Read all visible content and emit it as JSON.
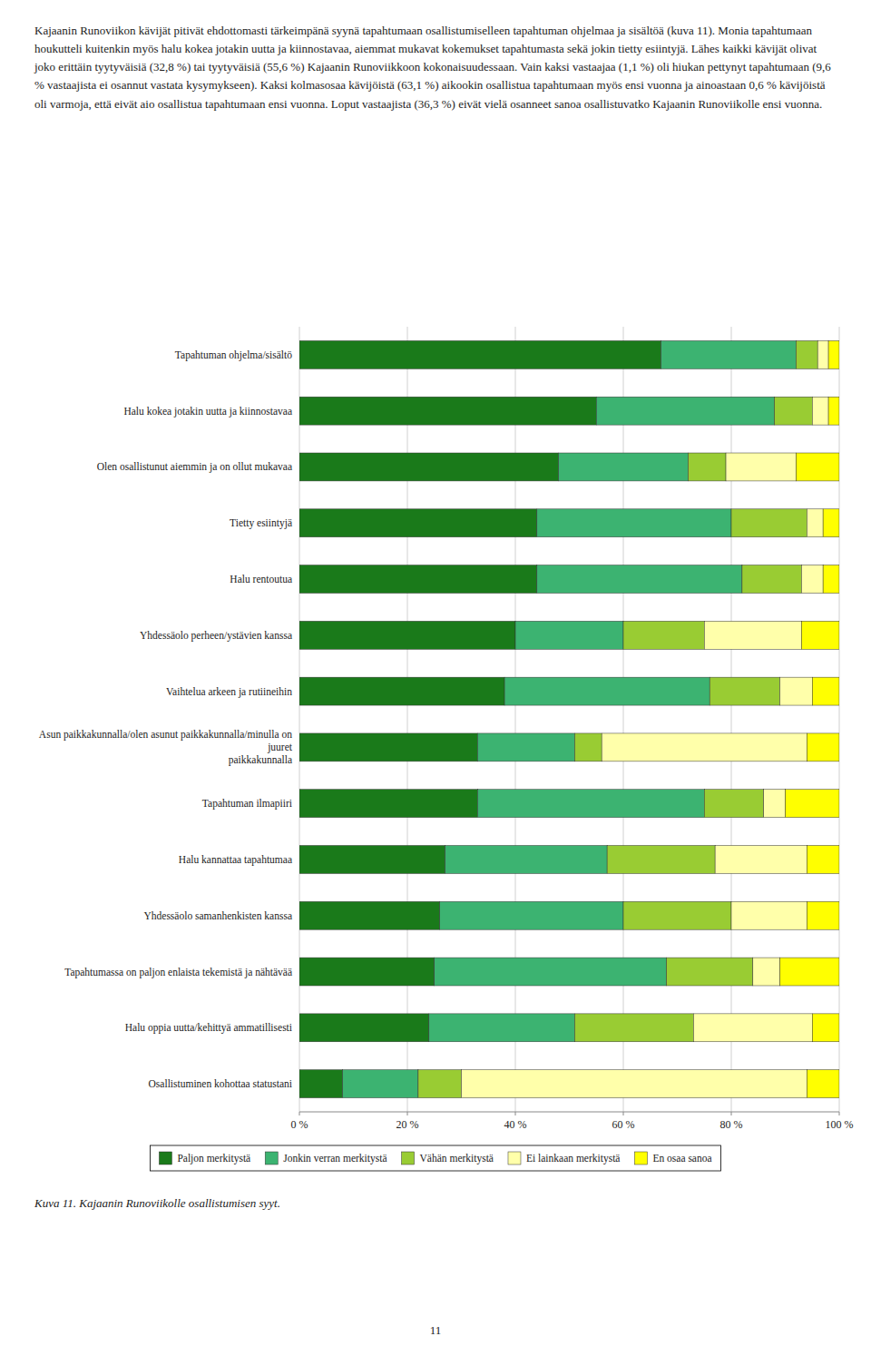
{
  "chart_data": {
    "type": "bar",
    "orientation": "horizontal",
    "stacked": true,
    "title": "Kuva 11. Kajaanin Runoviikolle osallistumisen syyt.",
    "annotations": [
      "Kajaanin Runoviikon kävijät pitivät ehdottomasti tärkeimpänä syynä tapahtumaan osallistumiselleen tapahtuman ohjelmaa ja sisältöä (kuva 11). Monia tapahtumaan houkutteli kuitenkin myös halu kokea jotakin uutta ja kiinnostavaa, aiemmat mukavat kokemukset tapahtumasta sekä jokin tietty esiintyjä. Lähes kaikki kävijät olivat joko erittäin tyytyväisiä (32,8 %) tai tyytyväisiä (55,6 %) Kajaanin Runoviikkoon kokonaisuudessaan. Vain kaksi vastaajaa (1,1 %) oli hiukan pettynyt tapahtumaan (9,6 % vastaajista ei osannut vastata kysymykseen). Kaksi kolmasosaa kävijöistä (63,1 %) aikookin osallistua tapahtumaan myös ensi vuonna ja ainoastaan 0,6 % kävijöistä oli varmoja, että eivät aio osallistua tapahtumaan ensi vuonna. Loput vastaajista (36,3 %) eivät vielä osanneet sanoa osallistuvatko Kajaanin Runoviikolle ensi vuonna.",
      "11"
    ],
    "categories": [
      "Tapahtuman ohjelma/sisältö",
      "Halu kokea jotakin uutta ja kiinnostavaa",
      "Olen osallistunut aiemmin ja on ollut mukavaa",
      "Tietty esiintyjä",
      "Halu rentoutua",
      "Yhdessäolo perheen/ystävien kanssa",
      "Vaihtelua arkeen ja rutiineihin",
      "Asun paikkakunnalla/olen asunut paikkakunnalla/minulla on juuret\npaikkakunnalla",
      "Tapahtuman ilmapiiri",
      "Halu kannattaa tapahtumaa",
      "Yhdessäolo samanhenkisten kanssa",
      "Tapahtumassa on paljon enlaista tekemistä ja nähtävää",
      "Halu oppia uutta/kehittyä ammatillisesti",
      "Osallistuminen kohottaa statustani"
    ],
    "series": [
      {
        "name": "Paljon merkitystä",
        "color": "#1a7a1a",
        "values": [
          67,
          55,
          48,
          44,
          44,
          40,
          38,
          33,
          33,
          27,
          26,
          25,
          24,
          8
        ]
      },
      {
        "name": "Jonkin verran merkitystä",
        "color": "#3cb371",
        "values": [
          25,
          33,
          24,
          36,
          38,
          20,
          38,
          18,
          42,
          30,
          34,
          43,
          27,
          14
        ]
      },
      {
        "name": "Vähän merkitystä",
        "color": "#99cc33",
        "values": [
          4,
          7,
          7,
          14,
          11,
          15,
          13,
          5,
          11,
          20,
          20,
          16,
          22,
          8
        ]
      },
      {
        "name": "Ei lainkaan merkitystä",
        "color": "#ffffaa",
        "values": [
          2,
          3,
          13,
          3,
          4,
          18,
          6,
          38,
          4,
          17,
          14,
          5,
          22,
          64
        ]
      },
      {
        "name": "En osaa sanoa",
        "color": "#ffff00",
        "values": [
          2,
          2,
          8,
          3,
          3,
          7,
          5,
          6,
          10,
          6,
          6,
          11,
          5,
          6
        ]
      }
    ],
    "xlim": [
      0,
      100
    ],
    "xticks": [
      {
        "value": 0,
        "label": "0 %"
      },
      {
        "value": 20,
        "label": "20 %"
      },
      {
        "value": 40,
        "label": "40 %"
      },
      {
        "value": 60,
        "label": "60 %"
      },
      {
        "value": 80,
        "label": "80 %"
      },
      {
        "value": 100,
        "label": "100 %"
      }
    ],
    "grid": true,
    "legend": "bottom"
  }
}
